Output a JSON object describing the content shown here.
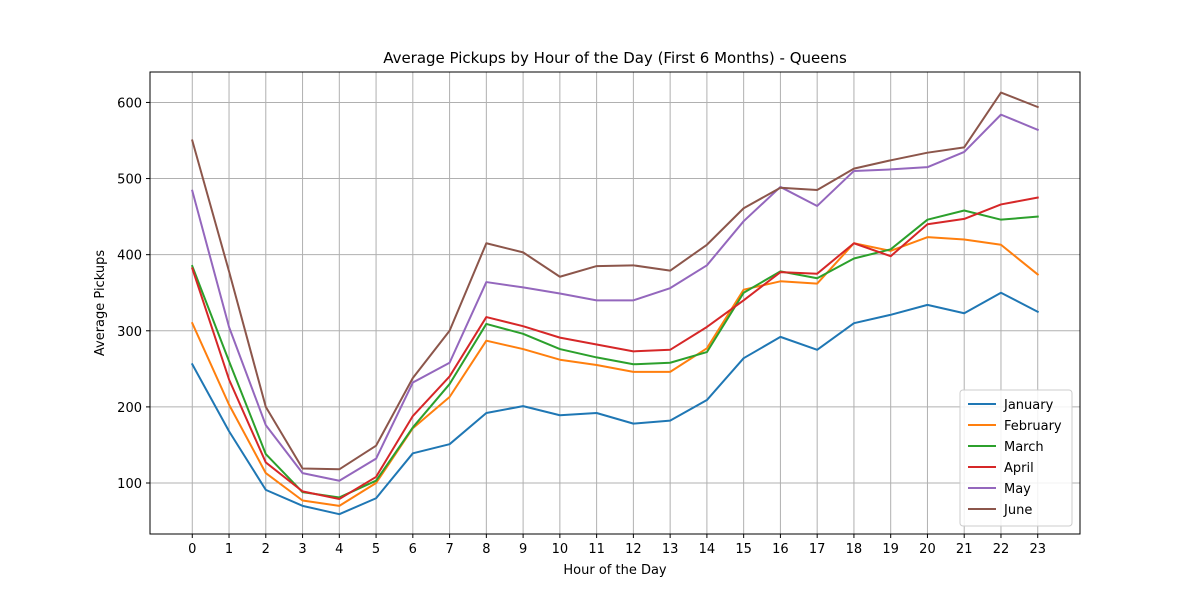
{
  "chart_data": {
    "type": "line",
    "title": "Average Pickups by Hour of the Day (First 6 Months) - Queens",
    "xlabel": "Hour of the Day",
    "ylabel": "Average Pickups",
    "x": [
      0,
      1,
      2,
      3,
      4,
      5,
      6,
      7,
      8,
      9,
      10,
      11,
      12,
      13,
      14,
      15,
      16,
      17,
      18,
      19,
      20,
      21,
      22,
      23
    ],
    "x_tick_labels": [
      "0",
      "1",
      "2",
      "3",
      "4",
      "5",
      "6",
      "7",
      "8",
      "9",
      "10",
      "11",
      "12",
      "13",
      "14",
      "15",
      "16",
      "17",
      "18",
      "19",
      "20",
      "21",
      "22",
      "23"
    ],
    "y_tick_labels": [
      "100",
      "200",
      "300",
      "400",
      "500",
      "600"
    ],
    "y_ticks": [
      100,
      200,
      300,
      400,
      500,
      600
    ],
    "xlim": [
      -1.15,
      24.15
    ],
    "ylim": [
      33,
      640
    ],
    "grid": true,
    "legend_position": "lower-right",
    "series": [
      {
        "name": "January",
        "color": "#1f77b4",
        "values": [
          256,
          168,
          91,
          70,
          59,
          80,
          139,
          151,
          192,
          201,
          189,
          192,
          178,
          182,
          209,
          264,
          292,
          275,
          310,
          321,
          334,
          323,
          350,
          325
        ]
      },
      {
        "name": "February",
        "color": "#ff7f0e",
        "values": [
          310,
          203,
          113,
          77,
          70,
          100,
          172,
          213,
          287,
          276,
          262,
          255,
          246,
          246,
          277,
          354,
          365,
          362,
          415,
          405,
          423,
          420,
          413,
          374
        ]
      },
      {
        "name": "March",
        "color": "#2ca02c",
        "values": [
          385,
          260,
          138,
          88,
          81,
          103,
          173,
          230,
          309,
          296,
          276,
          265,
          256,
          258,
          272,
          350,
          378,
          369,
          395,
          407,
          446,
          458,
          446,
          450
        ]
      },
      {
        "name": "April",
        "color": "#d62728",
        "values": [
          382,
          236,
          127,
          89,
          79,
          108,
          188,
          240,
          318,
          306,
          291,
          282,
          273,
          275,
          305,
          340,
          377,
          375,
          415,
          398,
          440,
          447,
          466,
          475
        ]
      },
      {
        "name": "May",
        "color": "#9467bd",
        "values": [
          484,
          305,
          176,
          113,
          103,
          132,
          232,
          258,
          364,
          357,
          349,
          340,
          340,
          356,
          386,
          444,
          489,
          464,
          510,
          512,
          515,
          535,
          584,
          564
        ]
      },
      {
        "name": "June",
        "color": "#8c564b",
        "values": [
          550,
          378,
          200,
          119,
          118,
          149,
          238,
          300,
          415,
          403,
          371,
          385,
          386,
          379,
          413,
          461,
          488,
          485,
          513,
          524,
          534,
          541,
          613,
          594
        ]
      }
    ]
  }
}
